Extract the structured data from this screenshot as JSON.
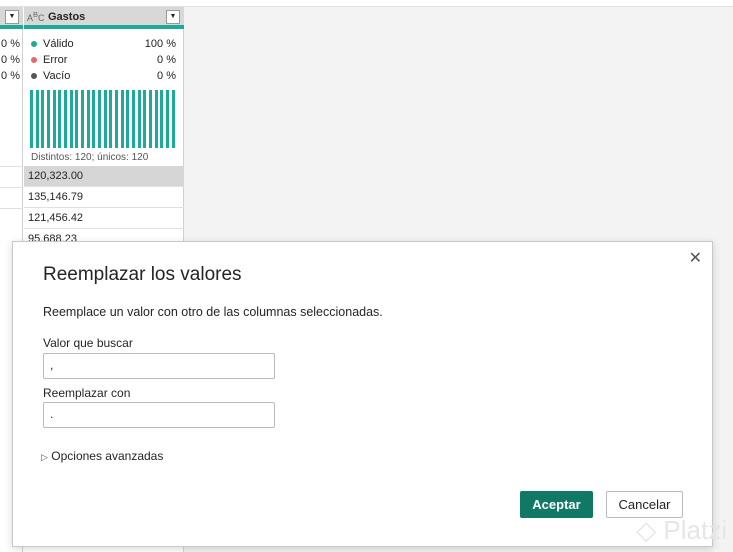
{
  "column": {
    "name": "Gastos",
    "type_icon": "abc-text-type-icon",
    "quality": [
      {
        "label": "Válido",
        "value": "100 %",
        "color": "#1fa99a"
      },
      {
        "label": "Error",
        "value": "0 %",
        "color": "#e8676b"
      },
      {
        "label": "Vacío",
        "value": "0 %",
        "color": "#555555"
      }
    ],
    "left_col_values": [
      "0 %",
      "0 %",
      "0 %"
    ],
    "distinct": "Distintos: 120; únicos: 120",
    "bar_count": 26,
    "accent": "#1fa99a"
  },
  "cells": [
    "120,323.00",
    "135,146.79",
    "121,456.42",
    "95,688.23"
  ],
  "dialog": {
    "title": "Reemplazar los valores",
    "description": "Reemplace un valor con otro de las columnas seleccionadas.",
    "find_label": "Valor que buscar",
    "find_value": ",",
    "replace_label": "Reemplazar con",
    "replace_value": ".",
    "advanced": "Opciones avanzadas",
    "ok": "Aceptar",
    "cancel": "Cancelar",
    "ok_color": "#117865"
  },
  "watermark": "Platzi"
}
